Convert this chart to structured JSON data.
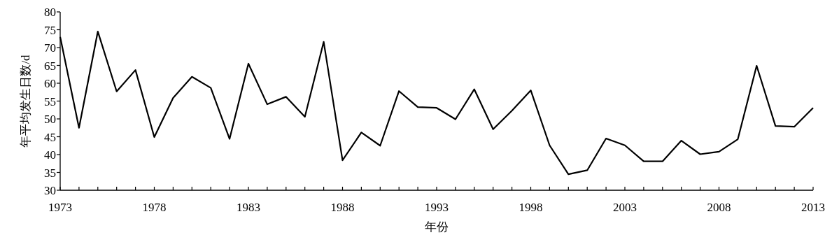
{
  "chart_data": {
    "type": "line",
    "xlabel": "年份",
    "ylabel": "年平均发生日数/d",
    "x": [
      1973,
      1974,
      1975,
      1976,
      1977,
      1978,
      1979,
      1980,
      1981,
      1982,
      1983,
      1984,
      1985,
      1986,
      1987,
      1988,
      1989,
      1990,
      1991,
      1992,
      1993,
      1994,
      1995,
      1996,
      1997,
      1998,
      1999,
      2000,
      2001,
      2002,
      2003,
      2004,
      2005,
      2006,
      2007,
      2008,
      2009,
      2010,
      2011,
      2012,
      2013
    ],
    "series": [
      {
        "color": "#000000",
        "values": [
          73,
          47.5,
          74.5,
          57.7,
          63.7,
          44.9,
          55.9,
          61.8,
          58.7,
          44.4,
          65.5,
          54.1,
          56.2,
          50.6,
          71.6,
          38.4,
          46.2,
          42.5,
          57.8,
          53.3,
          53.1,
          49.9,
          58.3,
          47.1,
          52.3,
          58.0,
          42.6,
          34.5,
          35.6,
          44.5,
          42.6,
          38.1,
          38.1,
          43.9,
          40.1,
          40.8,
          44.3,
          64.9,
          48.0,
          47.8,
          53.1
        ]
      }
    ],
    "xlim": [
      1973,
      2013
    ],
    "xticks": [
      1973,
      {
        "value": 1974,
        "label": null
      },
      {
        "value": 1975,
        "label": null
      },
      {
        "value": 1976,
        "label": null
      },
      {
        "value": 1977,
        "label": null
      },
      1978,
      {
        "value": 1979,
        "label": null
      },
      {
        "value": 1980,
        "label": null
      },
      {
        "value": 1981,
        "label": null
      },
      {
        "value": 1982,
        "label": null
      },
      1983,
      {
        "value": 1984,
        "label": null
      },
      {
        "value": 1985,
        "label": null
      },
      {
        "value": 1986,
        "label": null
      },
      {
        "value": 1987,
        "label": null
      },
      1988,
      {
        "value": 1989,
        "label": null
      },
      {
        "value": 1990,
        "label": null
      },
      {
        "value": 1991,
        "label": null
      },
      {
        "value": 1992,
        "label": null
      },
      1993,
      {
        "value": 1994,
        "label": null
      },
      {
        "value": 1995,
        "label": null
      },
      {
        "value": 1996,
        "label": null
      },
      {
        "value": 1997,
        "label": null
      },
      1998,
      {
        "value": 1999,
        "label": null
      },
      {
        "value": 2000,
        "label": null
      },
      {
        "value": 2001,
        "label": null
      },
      {
        "value": 2002,
        "label": null
      },
      2003,
      {
        "value": 2004,
        "label": null
      },
      {
        "value": 2005,
        "label": null
      },
      {
        "value": 2006,
        "label": null
      },
      {
        "value": 2007,
        "label": null
      },
      2008,
      {
        "value": 2009,
        "label": null
      },
      {
        "value": 2010,
        "label": null
      },
      {
        "value": 2011,
        "label": null
      },
      {
        "value": 2012,
        "label": null
      },
      2013
    ],
    "ylim": [
      30,
      80
    ],
    "yticks": [
      30,
      35,
      40,
      45,
      50,
      55,
      60,
      65,
      70,
      75,
      80
    ],
    "grid": false,
    "marker": "none",
    "line_style": "solid"
  }
}
